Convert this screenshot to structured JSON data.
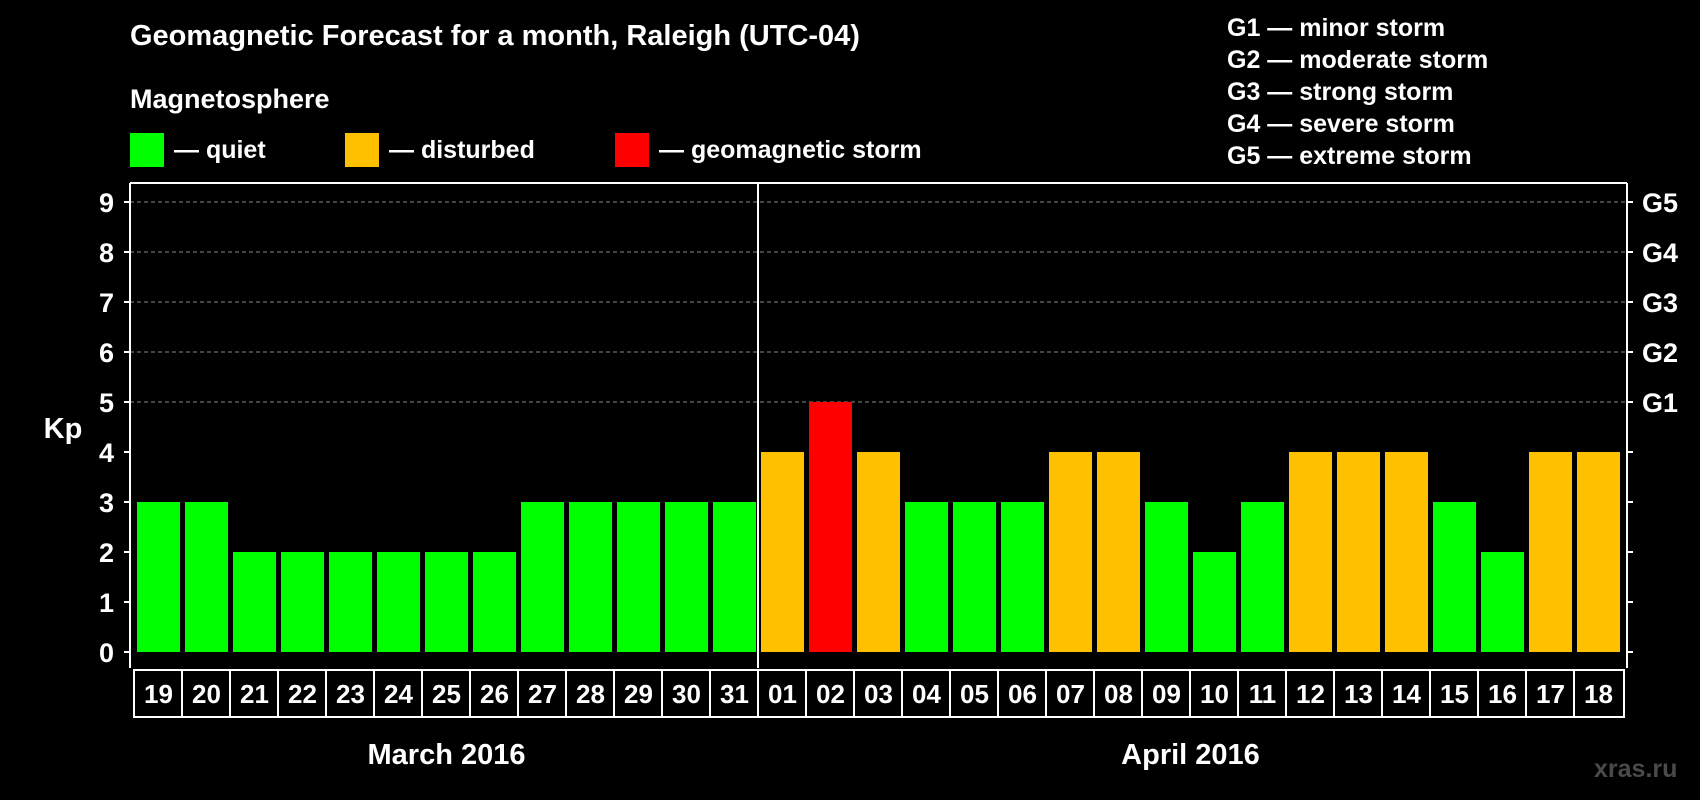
{
  "title": "Geomagnetic Forecast for a month, Raleigh (UTC-04)",
  "subtitle": "Magnetosphere",
  "legend": [
    {
      "label": "— quiet",
      "color": "#00ff00"
    },
    {
      "label": "— disturbed",
      "color": "#ffc000"
    },
    {
      "label": "— geomagnetic storm",
      "color": "#ff0000"
    }
  ],
  "storm_scale": [
    "G1 — minor storm",
    "G2 — moderate storm",
    "G3 — strong storm",
    "G4 — severe storm",
    "G5 — extreme storm"
  ],
  "watermark": "xras.ru",
  "colors": {
    "quiet": "#00ff00",
    "disturbed": "#ffc000",
    "storm": "#ff0000",
    "background": "#000000",
    "grid": "#888888"
  },
  "chart_data": {
    "type": "bar",
    "ylabel": "Kp",
    "ylim": [
      0,
      9
    ],
    "yticks": [
      0,
      1,
      2,
      3,
      4,
      5,
      6,
      7,
      8,
      9
    ],
    "right_axis_labels": [
      {
        "value": 5,
        "label": "G1"
      },
      {
        "value": 6,
        "label": "G2"
      },
      {
        "value": 7,
        "label": "G3"
      },
      {
        "value": 8,
        "label": "G4"
      },
      {
        "value": 9,
        "label": "G5"
      }
    ],
    "categories": [
      "19",
      "20",
      "21",
      "22",
      "23",
      "24",
      "25",
      "26",
      "27",
      "28",
      "29",
      "30",
      "31",
      "01",
      "02",
      "03",
      "04",
      "05",
      "06",
      "07",
      "08",
      "09",
      "10",
      "11",
      "12",
      "13",
      "14",
      "15",
      "16",
      "17",
      "18"
    ],
    "values": [
      3,
      3,
      2,
      2,
      2,
      2,
      2,
      2,
      3,
      3,
      3,
      3,
      3,
      4,
      5,
      4,
      3,
      3,
      3,
      4,
      4,
      3,
      2,
      3,
      4,
      4,
      4,
      3,
      2,
      4,
      4
    ],
    "levels": [
      "quiet",
      "quiet",
      "quiet",
      "quiet",
      "quiet",
      "quiet",
      "quiet",
      "quiet",
      "quiet",
      "quiet",
      "quiet",
      "quiet",
      "quiet",
      "disturbed",
      "storm",
      "disturbed",
      "quiet",
      "quiet",
      "quiet",
      "disturbed",
      "disturbed",
      "quiet",
      "quiet",
      "quiet",
      "disturbed",
      "disturbed",
      "disturbed",
      "quiet",
      "quiet",
      "disturbed",
      "disturbed"
    ],
    "months": [
      {
        "label": "March 2016",
        "first_index": 0,
        "count": 13
      },
      {
        "label": "April 2016",
        "first_index": 13,
        "count": 18
      }
    ]
  }
}
